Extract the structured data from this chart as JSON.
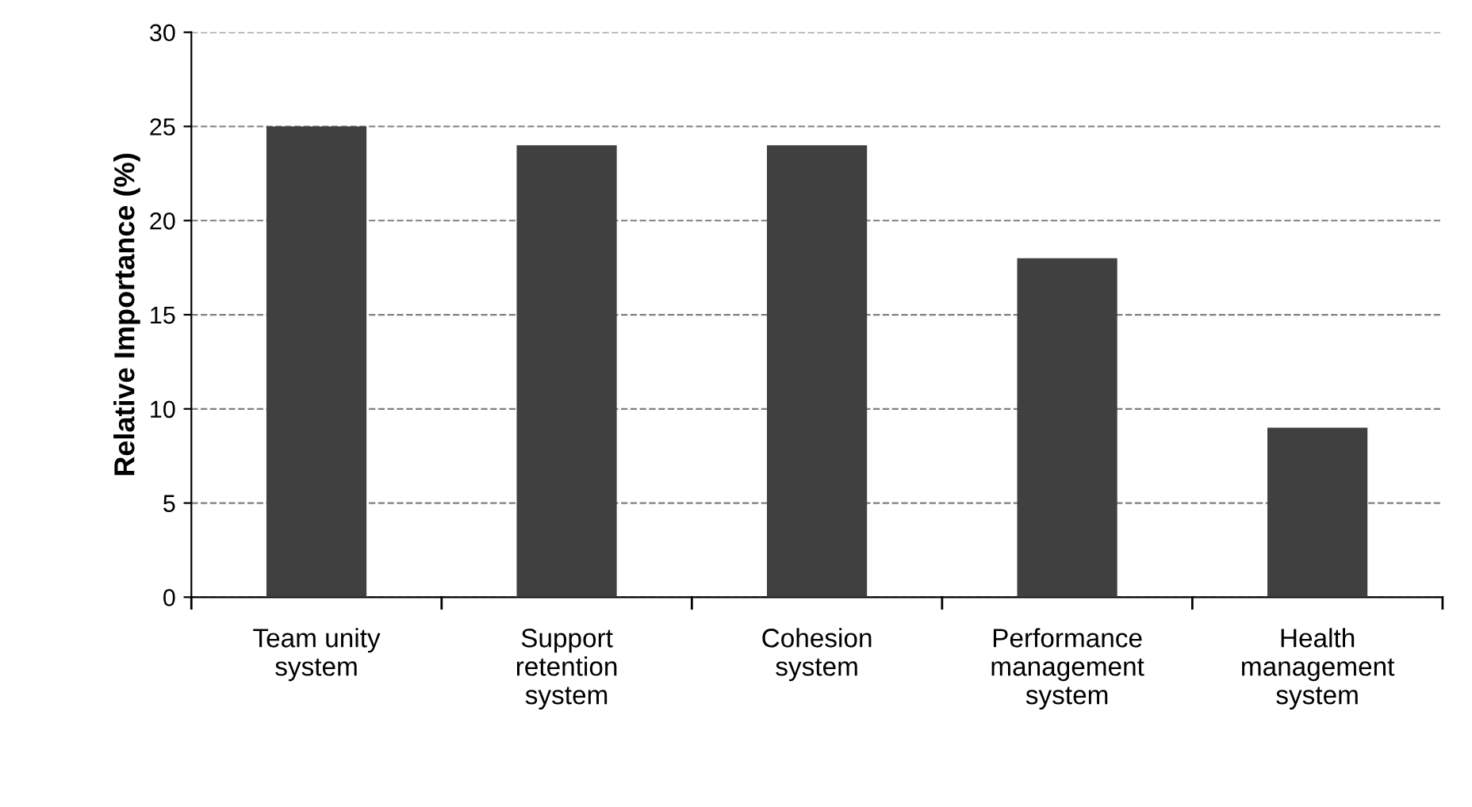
{
  "chart_data": {
    "type": "bar",
    "ylabel": "Relative Importance (%)",
    "categories": [
      "Team unity\nsystem",
      "Support\nretention\nsystem",
      "Cohesion\nsystem",
      "Performance\nmanagement\nsystem",
      "Health\nmanagement\nsystem"
    ],
    "values": [
      25,
      24,
      24,
      18,
      9
    ],
    "color": "#404040",
    "ylim": [
      0,
      30
    ],
    "yticks": [
      0,
      5,
      10,
      15,
      20,
      25,
      30
    ],
    "grid": "y",
    "line_style": "dashed"
  }
}
